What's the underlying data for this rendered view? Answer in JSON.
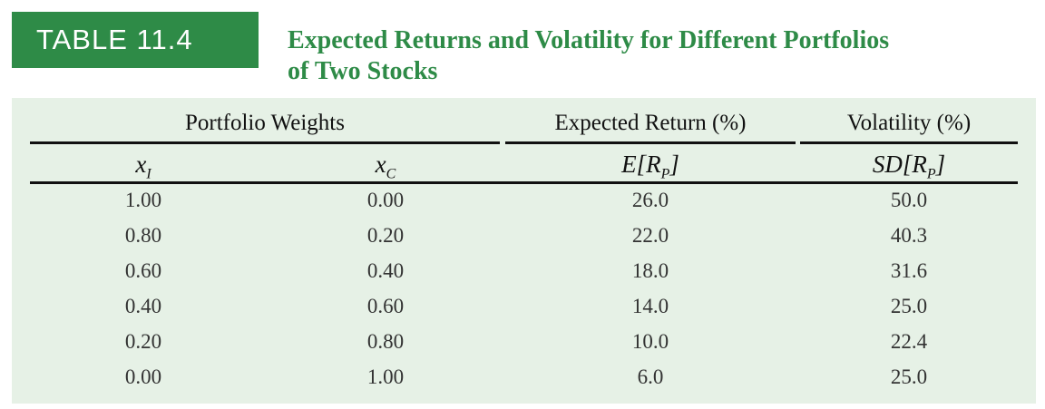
{
  "table_label": "TABLE 11.4",
  "title_line1": "Expected Returns and Volatility for Different Portfolios",
  "title_line2": "of Two Stocks",
  "headers": {
    "weights": "Portfolio Weights",
    "expected_return": "Expected Return (%)",
    "volatility": "Volatility (%)"
  },
  "subheaders": {
    "xi_base": "x",
    "xi_sub": "I",
    "xc_base": "x",
    "xc_sub": "C",
    "er_base": "E[R",
    "er_sub": "P",
    "er_end": "]",
    "sd_base": "SD[R",
    "sd_sub": "P",
    "sd_end": "]"
  },
  "rows": [
    [
      "1.00",
      "0.00",
      "26.0",
      "50.0"
    ],
    [
      "0.80",
      "0.20",
      "22.0",
      "40.3"
    ],
    [
      "0.60",
      "0.40",
      "18.0",
      "31.6"
    ],
    [
      "0.40",
      "0.60",
      "14.0",
      "25.0"
    ],
    [
      "0.20",
      "0.80",
      "10.0",
      "22.4"
    ],
    [
      "0.00",
      "1.00",
      "6.0",
      "25.0"
    ]
  ],
  "colors": {
    "accent": "#2e8b47",
    "panel": "#e6f1e6"
  }
}
